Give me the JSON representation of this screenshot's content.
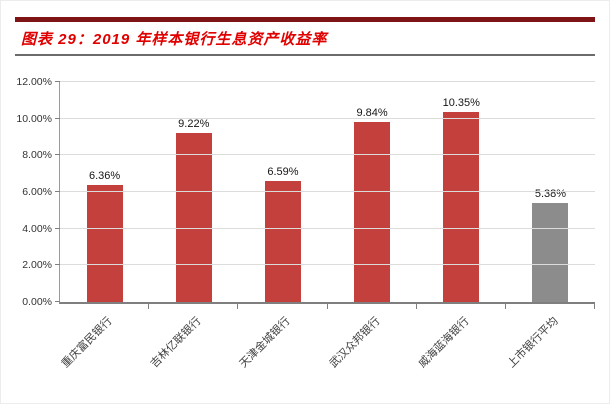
{
  "figure": {
    "title": "图表 29：2019 年样本银行生息资产收益率"
  },
  "chart_data": {
    "type": "bar",
    "title": "图表 29：2019 年样本银行生息资产收益率",
    "categories": [
      "重庆富民银行",
      "吉林亿联银行",
      "天津金城银行",
      "武汉众邦银行",
      "威海蓝海银行",
      "上市银行平均"
    ],
    "values": [
      6.36,
      9.22,
      6.59,
      9.84,
      10.35,
      5.38
    ],
    "value_labels": [
      "6.36%",
      "9.22%",
      "6.59%",
      "9.84%",
      "10.35%",
      "5.38%"
    ],
    "bar_colors": [
      "#c4403d",
      "#c4403d",
      "#c4403d",
      "#c4403d",
      "#c4403d",
      "#8c8c8c"
    ],
    "ylim": [
      0,
      12
    ],
    "yticks": [
      "0.00%",
      "2.00%",
      "4.00%",
      "6.00%",
      "8.00%",
      "10.00%",
      "12.00%"
    ],
    "grid": true,
    "legend": "none",
    "xlabel": "",
    "ylabel": "",
    "accent_colors": {
      "title_red": "#e00000",
      "rule_maroon": "#7e1416",
      "bar_red": "#c4403d",
      "bar_gray": "#8c8c8c",
      "gridline_gray": "#dcdcdc"
    }
  }
}
